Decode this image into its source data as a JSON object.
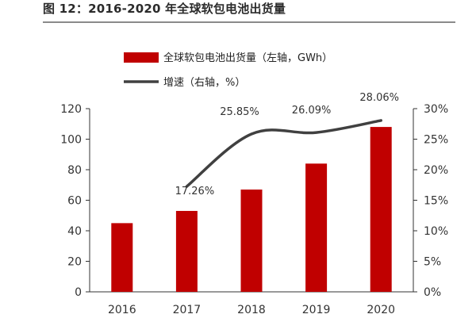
{
  "title": "图 12：2016-2020 年全球软包电池出货量",
  "chart_data": {
    "type": "bar",
    "categories": [
      "2016",
      "2017",
      "2018",
      "2019",
      "2020"
    ],
    "series": [
      {
        "name": "全球软包电池出货量（左轴，GWh）",
        "type": "bar",
        "axis": "left",
        "color": "#c00000",
        "values": [
          45,
          53,
          67,
          84,
          108
        ]
      },
      {
        "name": "增速（右轴，%）",
        "type": "line",
        "axis": "right",
        "color": "#404040",
        "values": [
          null,
          17.26,
          25.85,
          26.09,
          28.06
        ],
        "labels": [
          "",
          "17.26%",
          "25.85%",
          "26.09%",
          "28.06%"
        ]
      }
    ],
    "y_left": {
      "min": 0,
      "max": 120,
      "ticks": [
        "0",
        "20",
        "40",
        "60",
        "80",
        "100",
        "120"
      ]
    },
    "y_right": {
      "min": 0,
      "max": 30,
      "ticks": [
        "0%",
        "5%",
        "10%",
        "15%",
        "20%",
        "25%",
        "30%"
      ]
    },
    "grid": false,
    "legend_position": "top-left"
  }
}
